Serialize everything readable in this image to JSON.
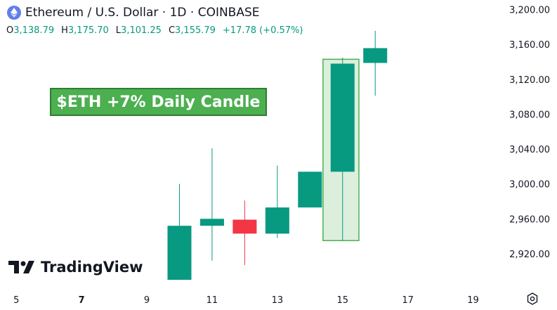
{
  "header": {
    "title": "Ethereum / U.S. Dollar · 1D · COINBASE",
    "ohlc": [
      {
        "key": "O",
        "value": "3,138.79"
      },
      {
        "key": "H",
        "value": "3,175.70"
      },
      {
        "key": "L",
        "value": "3,101.25"
      },
      {
        "key": "C",
        "value": "3,155.79"
      },
      {
        "key": "",
        "value": "+17.78 (+0.57%)"
      }
    ]
  },
  "annotation": {
    "text": "$ETH +7% Daily Candle"
  },
  "brand": {
    "name": "TradingView"
  },
  "colors": {
    "up": "#089981",
    "down": "#f23645",
    "highlight": "#4caf50",
    "brand_eth": "#627eea"
  },
  "icons": {
    "settings": "gear-icon",
    "asset": "ethereum-icon",
    "logo": "tradingview-logo-icon"
  },
  "chart_data": {
    "type": "candlestick",
    "x_tick_labels": [
      "5",
      "7",
      "9",
      "11",
      "13",
      "15",
      "17",
      "19"
    ],
    "x_tick_values": [
      5,
      7,
      9,
      11,
      13,
      15,
      17,
      19
    ],
    "bold_x_tick": "7",
    "y_tick_labels": [
      "2,920.00",
      "2,960.00",
      "3,000.00",
      "3,040.00",
      "3,080.00",
      "3,120.00",
      "3,160.00",
      "3,200.00"
    ],
    "y_tick_values": [
      2920,
      2960,
      3000,
      3040,
      3080,
      3120,
      3160,
      3200
    ],
    "xlim": [
      4.5,
      20.0
    ],
    "ylim": [
      2882,
      3211
    ],
    "candles": [
      {
        "day": 10,
        "open": 2890,
        "high": 3000,
        "low": 2890,
        "close": 2952
      },
      {
        "day": 11,
        "open": 2952,
        "high": 3041,
        "low": 2912,
        "close": 2960
      },
      {
        "day": 12,
        "open": 2959,
        "high": 2981,
        "low": 2907,
        "close": 2943
      },
      {
        "day": 13,
        "open": 2943,
        "high": 3021,
        "low": 2938,
        "close": 2973
      },
      {
        "day": 14,
        "open": 2973,
        "high": 3014,
        "low": 2973,
        "close": 3014
      },
      {
        "day": 15,
        "open": 3014,
        "high": 3145,
        "low": 2935,
        "close": 3138
      },
      {
        "day": 16,
        "open": 3138.79,
        "high": 3175.7,
        "low": 3101.25,
        "close": 3155.79
      }
    ],
    "highlight": {
      "day_start": 14.4,
      "day_end": 15.5,
      "low": 2935,
      "high": 3143
    }
  }
}
